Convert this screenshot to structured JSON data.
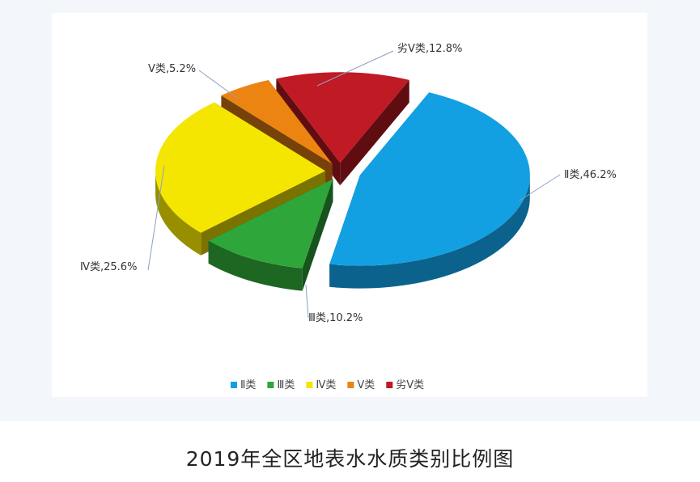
{
  "caption": "2019年全区地表水水质类别比例图",
  "chart_data": {
    "type": "pie",
    "title": "",
    "legend_position": "bottom",
    "slices": [
      {
        "name": "Ⅱ类",
        "value": 46.2,
        "label": "Ⅱ类,46.2%",
        "color": "#12a0e3"
      },
      {
        "name": "Ⅲ类",
        "value": 10.2,
        "label": "Ⅲ类,10.2%",
        "color": "#2ea639"
      },
      {
        "name": "Ⅳ类",
        "value": 25.6,
        "label": "Ⅳ类,25.6%",
        "color": "#f4e600"
      },
      {
        "name": "Ⅴ类",
        "value": 5.2,
        "label": "Ⅴ类,5.2%",
        "color": "#ec8412"
      },
      {
        "name": "劣Ⅴ类",
        "value": 12.8,
        "label": "劣Ⅴ类,12.8%",
        "color": "#c01a24"
      }
    ]
  }
}
